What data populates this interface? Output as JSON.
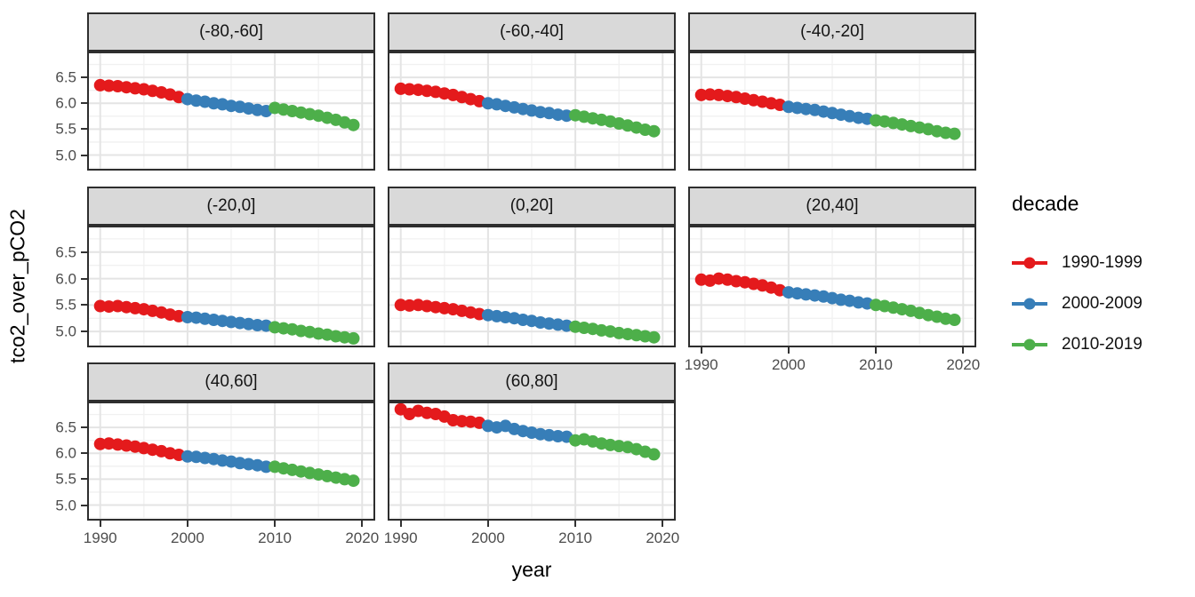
{
  "chart_data": {
    "type": "line",
    "title": "",
    "xlabel": "year",
    "ylabel": "tco2_over_pCO2",
    "grid": true,
    "xlim": [
      1988.5,
      2021.5
    ],
    "ylim": [
      4.7,
      7.0
    ],
    "x_ticks": [
      {
        "value": 1990,
        "label": "1990"
      },
      {
        "value": 2000,
        "label": "2000"
      },
      {
        "value": 2010,
        "label": "2010"
      },
      {
        "value": 2020,
        "label": "2020"
      }
    ],
    "y_ticks": [
      {
        "value": 6.5,
        "label": "6.5"
      },
      {
        "value": 6.0,
        "label": "6.0"
      },
      {
        "value": 5.5,
        "label": "5.5"
      },
      {
        "value": 5.0,
        "label": "5.0"
      }
    ],
    "legend": {
      "title": "decade",
      "position": "right",
      "entries": [
        {
          "label": "1990-1999",
          "color": "#E41A1C"
        },
        {
          "label": "2000-2009",
          "color": "#377EB8"
        },
        {
          "label": "2010-2019",
          "color": "#4DAF4A"
        }
      ]
    },
    "decades": [
      {
        "name": "1990-1999",
        "start_year": 1990,
        "color": "#E41A1C"
      },
      {
        "name": "2000-2009",
        "start_year": 2000,
        "color": "#377EB8"
      },
      {
        "name": "2010-2019",
        "start_year": 2010,
        "color": "#4DAF4A"
      }
    ],
    "facets": [
      {
        "label": "(-80,-60]",
        "series": [
          {
            "name": "1990-1999",
            "values": [
              6.35,
              6.34,
              6.33,
              6.31,
              6.29,
              6.27,
              6.24,
              6.21,
              6.17,
              6.12
            ]
          },
          {
            "name": "2000-2009",
            "values": [
              6.08,
              6.05,
              6.03,
              6.0,
              5.98,
              5.95,
              5.93,
              5.9,
              5.87,
              5.85
            ]
          },
          {
            "name": "2010-2019",
            "values": [
              5.91,
              5.88,
              5.85,
              5.82,
              5.79,
              5.76,
              5.72,
              5.68,
              5.63,
              5.58
            ]
          }
        ]
      },
      {
        "label": "(-60,-40]",
        "series": [
          {
            "name": "1990-1999",
            "values": [
              6.28,
              6.27,
              6.26,
              6.24,
              6.22,
              6.19,
              6.16,
              6.12,
              6.08,
              6.04
            ]
          },
          {
            "name": "2000-2009",
            "values": [
              6.0,
              5.98,
              5.95,
              5.92,
              5.89,
              5.86,
              5.83,
              5.81,
              5.78,
              5.76
            ]
          },
          {
            "name": "2010-2019",
            "values": [
              5.77,
              5.74,
              5.71,
              5.68,
              5.65,
              5.61,
              5.57,
              5.53,
              5.49,
              5.46
            ]
          }
        ]
      },
      {
        "label": "(-40,-20]",
        "series": [
          {
            "name": "1990-1999",
            "values": [
              6.16,
              6.17,
              6.16,
              6.14,
              6.12,
              6.09,
              6.06,
              6.03,
              6.0,
              5.97
            ]
          },
          {
            "name": "2000-2009",
            "values": [
              5.93,
              5.91,
              5.89,
              5.87,
              5.84,
              5.81,
              5.78,
              5.75,
              5.72,
              5.7
            ]
          },
          {
            "name": "2010-2019",
            "values": [
              5.67,
              5.65,
              5.62,
              5.59,
              5.56,
              5.53,
              5.5,
              5.46,
              5.43,
              5.41
            ]
          }
        ]
      },
      {
        "label": "(-20,0]",
        "series": [
          {
            "name": "1990-1999",
            "values": [
              5.48,
              5.47,
              5.48,
              5.46,
              5.44,
              5.42,
              5.39,
              5.36,
              5.32,
              5.29
            ]
          },
          {
            "name": "2000-2009",
            "values": [
              5.27,
              5.26,
              5.24,
              5.22,
              5.2,
              5.18,
              5.16,
              5.14,
              5.12,
              5.11
            ]
          },
          {
            "name": "2010-2019",
            "values": [
              5.08,
              5.06,
              5.04,
              5.01,
              4.99,
              4.96,
              4.94,
              4.91,
              4.89,
              4.87
            ]
          }
        ]
      },
      {
        "label": "(0,20]",
        "series": [
          {
            "name": "1990-1999",
            "values": [
              5.5,
              5.49,
              5.5,
              5.48,
              5.46,
              5.44,
              5.42,
              5.39,
              5.36,
              5.33
            ]
          },
          {
            "name": "2000-2009",
            "values": [
              5.31,
              5.29,
              5.27,
              5.25,
              5.22,
              5.2,
              5.17,
              5.15,
              5.13,
              5.11
            ]
          },
          {
            "name": "2010-2019",
            "values": [
              5.09,
              5.07,
              5.05,
              5.02,
              5.0,
              4.97,
              4.95,
              4.93,
              4.91,
              4.89
            ]
          }
        ]
      },
      {
        "label": "(20,40]",
        "series": [
          {
            "name": "1990-1999",
            "values": [
              5.98,
              5.96,
              6.0,
              5.98,
              5.95,
              5.93,
              5.9,
              5.87,
              5.83,
              5.78
            ]
          },
          {
            "name": "2000-2009",
            "values": [
              5.74,
              5.72,
              5.7,
              5.68,
              5.66,
              5.63,
              5.6,
              5.58,
              5.55,
              5.53
            ]
          },
          {
            "name": "2010-2019",
            "values": [
              5.5,
              5.48,
              5.45,
              5.42,
              5.39,
              5.35,
              5.31,
              5.28,
              5.24,
              5.22
            ]
          }
        ]
      },
      {
        "label": "(40,60]",
        "series": [
          {
            "name": "1990-1999",
            "values": [
              6.18,
              6.19,
              6.17,
              6.15,
              6.13,
              6.1,
              6.07,
              6.04,
              6.0,
              5.97
            ]
          },
          {
            "name": "2000-2009",
            "values": [
              5.94,
              5.93,
              5.91,
              5.89,
              5.86,
              5.84,
              5.81,
              5.79,
              5.77,
              5.74
            ]
          },
          {
            "name": "2010-2019",
            "values": [
              5.74,
              5.71,
              5.68,
              5.65,
              5.62,
              5.59,
              5.56,
              5.53,
              5.5,
              5.47
            ]
          }
        ]
      },
      {
        "label": "(60,80]",
        "series": [
          {
            "name": "1990-1999",
            "values": [
              6.85,
              6.76,
              6.82,
              6.78,
              6.76,
              6.71,
              6.64,
              6.62,
              6.61,
              6.59
            ]
          },
          {
            "name": "2000-2009",
            "values": [
              6.53,
              6.5,
              6.53,
              6.47,
              6.43,
              6.4,
              6.37,
              6.35,
              6.33,
              6.32
            ]
          },
          {
            "name": "2010-2019",
            "values": [
              6.25,
              6.27,
              6.23,
              6.19,
              6.16,
              6.14,
              6.12,
              6.08,
              6.03,
              5.98
            ]
          }
        ]
      }
    ],
    "style": {
      "strip_bg": "#d9d9d9",
      "panel_border": "#2e2e2e",
      "grid_major": "#e4e4e4",
      "grid_minor": "#f1f1f1"
    }
  }
}
